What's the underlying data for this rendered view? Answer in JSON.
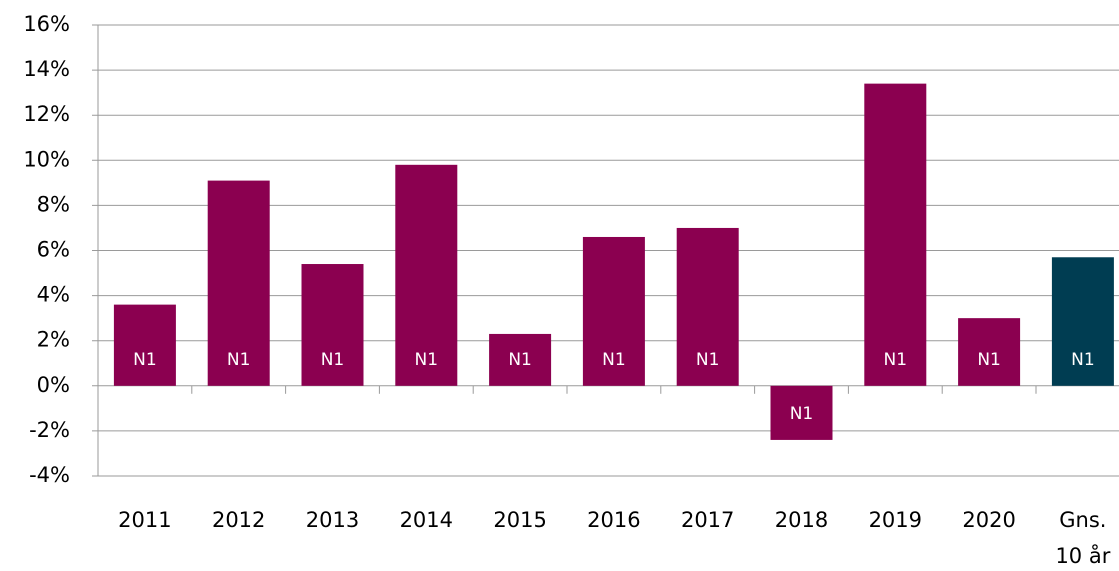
{
  "chart_data": {
    "type": "bar",
    "categories": [
      "2011",
      "2012",
      "2013",
      "2014",
      "2015",
      "2016",
      "2017",
      "2018",
      "2019",
      "2020",
      "Gns. 10 år"
    ],
    "values": [
      3.6,
      9.1,
      5.4,
      9.8,
      2.3,
      6.6,
      7.0,
      -2.4,
      13.4,
      3.0,
      5.7
    ],
    "value_labels": [
      "N1",
      "N1",
      "N1",
      "N1",
      "N1",
      "N1",
      "N1",
      "N1",
      "N1",
      "N1",
      "N1"
    ],
    "colors": [
      "#8b0050",
      "#8b0050",
      "#8b0050",
      "#8b0050",
      "#8b0050",
      "#8b0050",
      "#8b0050",
      "#8b0050",
      "#8b0050",
      "#8b0050",
      "#003d52"
    ],
    "ylim": [
      -4,
      16
    ],
    "yticks": [
      {
        "value": -4,
        "label": "-4%"
      },
      {
        "value": -2,
        "label": "-2%"
      },
      {
        "value": 0,
        "label": "0%"
      },
      {
        "value": 2,
        "label": "2%"
      },
      {
        "value": 4,
        "label": "4%"
      },
      {
        "value": 6,
        "label": "6%"
      },
      {
        "value": 8,
        "label": "8%"
      },
      {
        "value": 10,
        "label": "10%"
      },
      {
        "value": 12,
        "label": "12%"
      },
      {
        "value": 14,
        "label": "14%"
      },
      {
        "value": 16,
        "label": "16%"
      }
    ],
    "grid": true
  }
}
